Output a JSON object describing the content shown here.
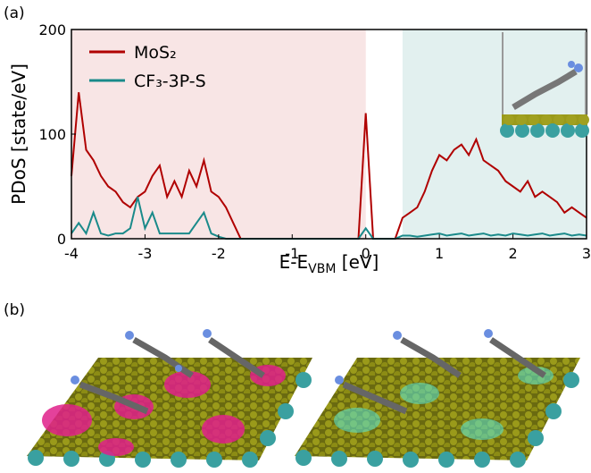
{
  "chart_data": {
    "type": "line",
    "panel_label": "(a)",
    "ylabel": "PDoS [state/eV]",
    "xlabel": [
      "E-E",
      "VBM",
      " [eV]"
    ],
    "x": [
      -4.0,
      -3.9,
      -3.8,
      -3.7,
      -3.6,
      -3.5,
      -3.4,
      -3.3,
      -3.2,
      -3.1,
      -3.0,
      -2.9,
      -2.8,
      -2.7,
      -2.6,
      -2.5,
      -2.4,
      -2.3,
      -2.2,
      -2.1,
      -2.0,
      -1.9,
      -1.8,
      -1.7,
      -1.6,
      -1.5,
      -1.4,
      -1.3,
      -1.2,
      -1.1,
      -1.0,
      -0.9,
      -0.8,
      -0.7,
      -0.6,
      -0.5,
      -0.4,
      -0.3,
      -0.2,
      -0.1,
      0.0,
      0.1,
      0.2,
      0.3,
      0.4,
      0.5,
      0.6,
      0.7,
      0.8,
      0.9,
      1.0,
      1.1,
      1.2,
      1.3,
      1.4,
      1.5,
      1.6,
      1.7,
      1.8,
      1.9,
      2.0,
      2.1,
      2.2,
      2.3,
      2.4,
      2.5,
      2.6,
      2.7,
      2.8,
      2.9,
      3.0
    ],
    "series": [
      {
        "name": "MoS₂",
        "color": "#b00000",
        "values": [
          60,
          140,
          85,
          75,
          60,
          50,
          45,
          35,
          30,
          40,
          45,
          60,
          70,
          40,
          55,
          40,
          65,
          50,
          75,
          45,
          40,
          30,
          15,
          0,
          0,
          0,
          0,
          0,
          0,
          0,
          0,
          0,
          0,
          0,
          0,
          0,
          0,
          0,
          0,
          0,
          120,
          0,
          0,
          0,
          0,
          20,
          25,
          30,
          45,
          65,
          80,
          75,
          85,
          90,
          80,
          95,
          75,
          70,
          65,
          55,
          50,
          45,
          55,
          40,
          45,
          40,
          35,
          25,
          30,
          25,
          20
        ]
      },
      {
        "name": "CF₃-3P-S",
        "color": "#1a8a8a",
        "values": [
          5,
          15,
          5,
          25,
          5,
          3,
          5,
          5,
          10,
          40,
          10,
          25,
          5,
          5,
          5,
          5,
          5,
          15,
          25,
          5,
          2,
          0,
          0,
          0,
          0,
          0,
          0,
          0,
          0,
          0,
          0,
          0,
          0,
          0,
          0,
          0,
          0,
          0,
          0,
          0,
          10,
          0,
          0,
          0,
          0,
          3,
          3,
          2,
          3,
          4,
          5,
          3,
          4,
          5,
          3,
          4,
          5,
          3,
          4,
          3,
          5,
          4,
          3,
          4,
          5,
          3,
          4,
          5,
          3,
          4,
          3
        ]
      }
    ],
    "regions": [
      {
        "xlim": [
          -4,
          0
        ],
        "color": "#f8e5e5"
      },
      {
        "xlim": [
          0.5,
          3
        ],
        "color": "#e2f0ef"
      }
    ],
    "xlim": [
      -4,
      3
    ],
    "xticks": [
      -4,
      -3,
      -2,
      -1,
      0,
      1,
      2,
      3
    ],
    "ylim": [
      0,
      200
    ],
    "yticks": [
      0,
      100,
      200
    ],
    "legend": "upper-left"
  },
  "panel_b": {
    "label": "(b)"
  }
}
